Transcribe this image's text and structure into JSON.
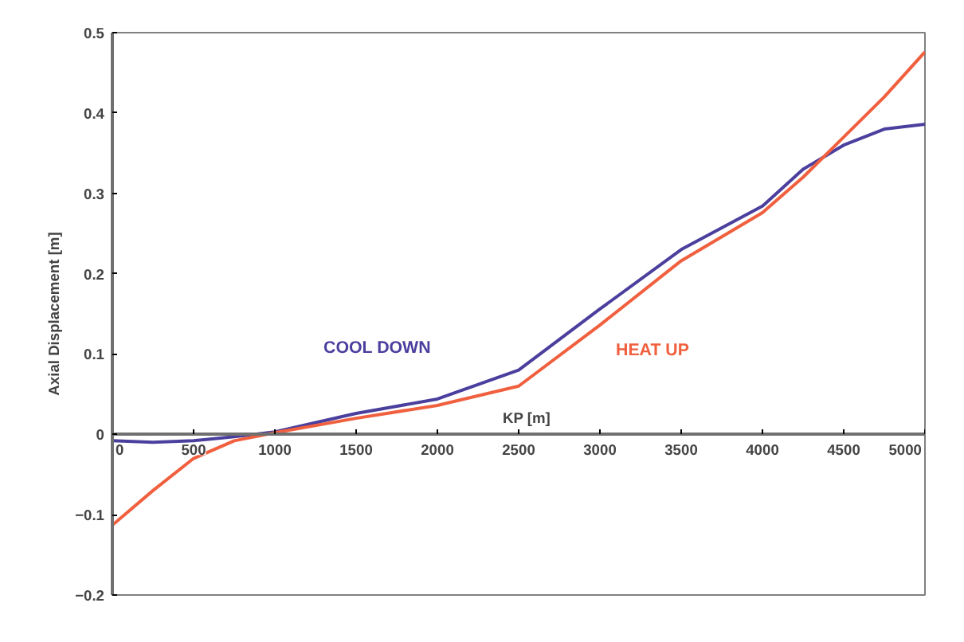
{
  "chart_data": {
    "type": "line",
    "xlabel": "KP [m]",
    "ylabel": "Axial Displacement [m]",
    "x": [
      0,
      250,
      500,
      750,
      1000,
      1500,
      2000,
      2500,
      3000,
      3500,
      4000,
      4250,
      4500,
      4750,
      5000
    ],
    "series": [
      {
        "name": "COOL DOWN",
        "color": "#4b3f9e",
        "values": [
          -0.008,
          -0.01,
          -0.008,
          -0.003,
          0.003,
          0.026,
          0.044,
          0.08,
          0.156,
          0.23,
          0.284,
          0.33,
          0.36,
          0.38,
          0.386
        ]
      },
      {
        "name": "HEAT UP",
        "color": "#f0603f",
        "values": [
          -0.113,
          -0.07,
          -0.03,
          -0.008,
          0.002,
          0.02,
          0.036,
          0.06,
          0.136,
          0.216,
          0.276,
          0.32,
          0.37,
          0.42,
          0.476
        ]
      }
    ],
    "xlim": [
      0,
      5000
    ],
    "ylim": [
      -0.2,
      0.5
    ],
    "xticks": [
      0,
      500,
      1000,
      1500,
      2000,
      2500,
      3000,
      3500,
      4000,
      4500,
      5000
    ],
    "yticks": [
      -0.2,
      -0.1,
      0,
      0.1,
      0.2,
      0.3,
      0.4,
      0.5
    ],
    "grid": false,
    "marker": "none",
    "line_style": "solid"
  }
}
